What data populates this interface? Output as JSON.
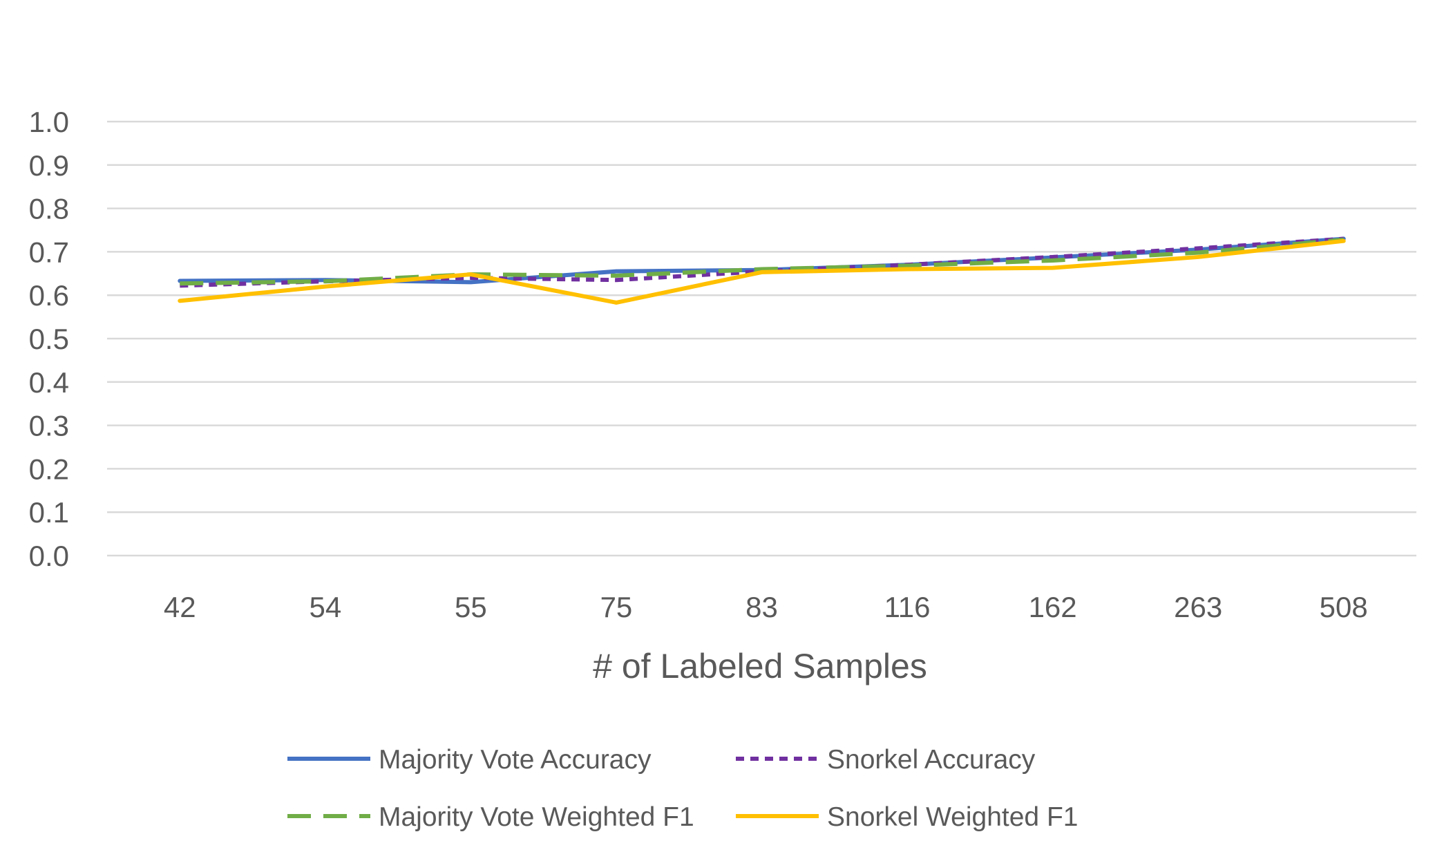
{
  "chart_data": {
    "type": "line",
    "title": "",
    "xlabel": "# of Labeled Samples",
    "ylabel": "",
    "categories": [
      "42",
      "54",
      "55",
      "75",
      "83",
      "116",
      "162",
      "263",
      "508"
    ],
    "ylim": [
      0.0,
      1.0
    ],
    "yticks": [
      "0.0",
      "0.1",
      "0.2",
      "0.3",
      "0.4",
      "0.5",
      "0.6",
      "0.7",
      "0.8",
      "0.9",
      "1.0"
    ],
    "grid": true,
    "legend_position": "bottom",
    "series": [
      {
        "name": "Majority Vote Accuracy",
        "color": "#4472C4",
        "dash": "solid",
        "values": [
          0.633,
          0.635,
          0.63,
          0.655,
          0.658,
          0.67,
          0.687,
          0.705,
          0.73
        ]
      },
      {
        "name": "Snorkel Accuracy",
        "color": "#7030A0",
        "dash": "dotted",
        "values": [
          0.622,
          0.632,
          0.64,
          0.635,
          0.655,
          0.67,
          0.688,
          0.708,
          0.73
        ]
      },
      {
        "name": "Majority Vote Weighted F1",
        "color": "#70AD47",
        "dash": "dashed",
        "values": [
          0.627,
          0.632,
          0.648,
          0.645,
          0.66,
          0.668,
          0.68,
          0.698,
          0.728
        ]
      },
      {
        "name": "Snorkel Weighted F1",
        "color": "#FFC000",
        "dash": "solid",
        "values": [
          0.587,
          0.62,
          0.648,
          0.583,
          0.653,
          0.66,
          0.663,
          0.688,
          0.725
        ]
      }
    ]
  }
}
